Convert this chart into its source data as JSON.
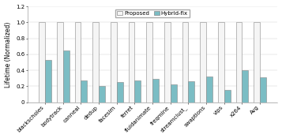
{
  "categories": [
    "blackscholes",
    "bodytrack",
    "canneal",
    "dedup",
    "facesim",
    "ferret",
    "fluidanimate",
    "freqmine",
    "streamclust_",
    "swaptions",
    "vips",
    "x264",
    "Avg"
  ],
  "proposed": [
    1.0,
    1.0,
    1.0,
    1.0,
    1.0,
    1.0,
    1.0,
    1.0,
    1.0,
    1.0,
    1.0,
    1.0,
    1.0
  ],
  "hybrid_fix": [
    0.53,
    0.65,
    0.27,
    0.2,
    0.25,
    0.27,
    0.29,
    0.22,
    0.26,
    0.32,
    0.15,
    0.4,
    0.31
  ],
  "proposed_color": "#f5f5f5",
  "proposed_edge": "#888888",
  "hybrid_fix_color": "#7bbdc4",
  "hybrid_fix_edge": "#888888",
  "ylabel": "Lifetime (Normalized)",
  "ylim": [
    0,
    1.2
  ],
  "yticks": [
    0,
    0.2,
    0.4,
    0.6,
    0.8,
    1.0,
    1.2
  ],
  "legend_labels": [
    "Proposed",
    "Hybrid-fix"
  ],
  "bar_width": 0.35,
  "axis_fontsize": 5.5,
  "tick_fontsize": 5.0,
  "legend_fontsize": 5.0,
  "figwidth": 3.57,
  "figheight": 1.75,
  "dpi": 100
}
